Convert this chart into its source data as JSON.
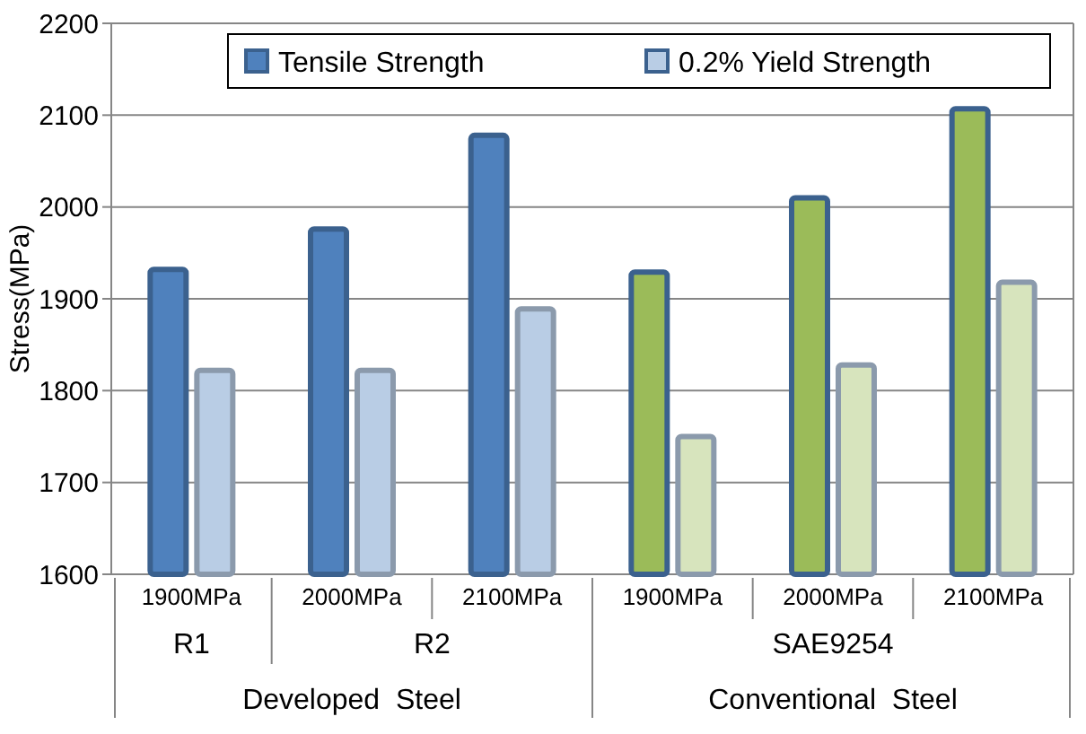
{
  "chart_data": {
    "type": "bar",
    "ylabel": "Stress(MPa)",
    "categories": [
      "1900MPa",
      "2000MPa",
      "2100MPa",
      "1900MPa",
      "2000MPa",
      "2100MPa"
    ],
    "series": [
      {
        "name": "Tensile Strength",
        "color": "#4f81bd",
        "colors": [
          "#4f81bd",
          "#4f81bd",
          "#4f81bd",
          "#9bbb59",
          "#9bbb59",
          "#9bbb59"
        ],
        "values": [
          1932,
          1976,
          2078,
          1929,
          2010,
          2107
        ]
      },
      {
        "name": "0.2% Yield Strength",
        "color": "#b9cde5",
        "colors": [
          "#b9cde5",
          "#b9cde5",
          "#b9cde5",
          "#d7e4bd",
          "#d7e4bd",
          "#d7e4bd"
        ],
        "values": [
          1822,
          1822,
          1889,
          1750,
          1828,
          1918
        ]
      }
    ],
    "ylim": [
      1600,
      2200
    ],
    "yticks": [
      1600,
      1700,
      1800,
      1900,
      2000,
      2100,
      2200
    ],
    "grid": "y",
    "legend": "top right",
    "annotations": [
      "R1",
      "R2",
      "SAE9254",
      "Developed  Steel",
      "Conventional  Steel"
    ]
  }
}
